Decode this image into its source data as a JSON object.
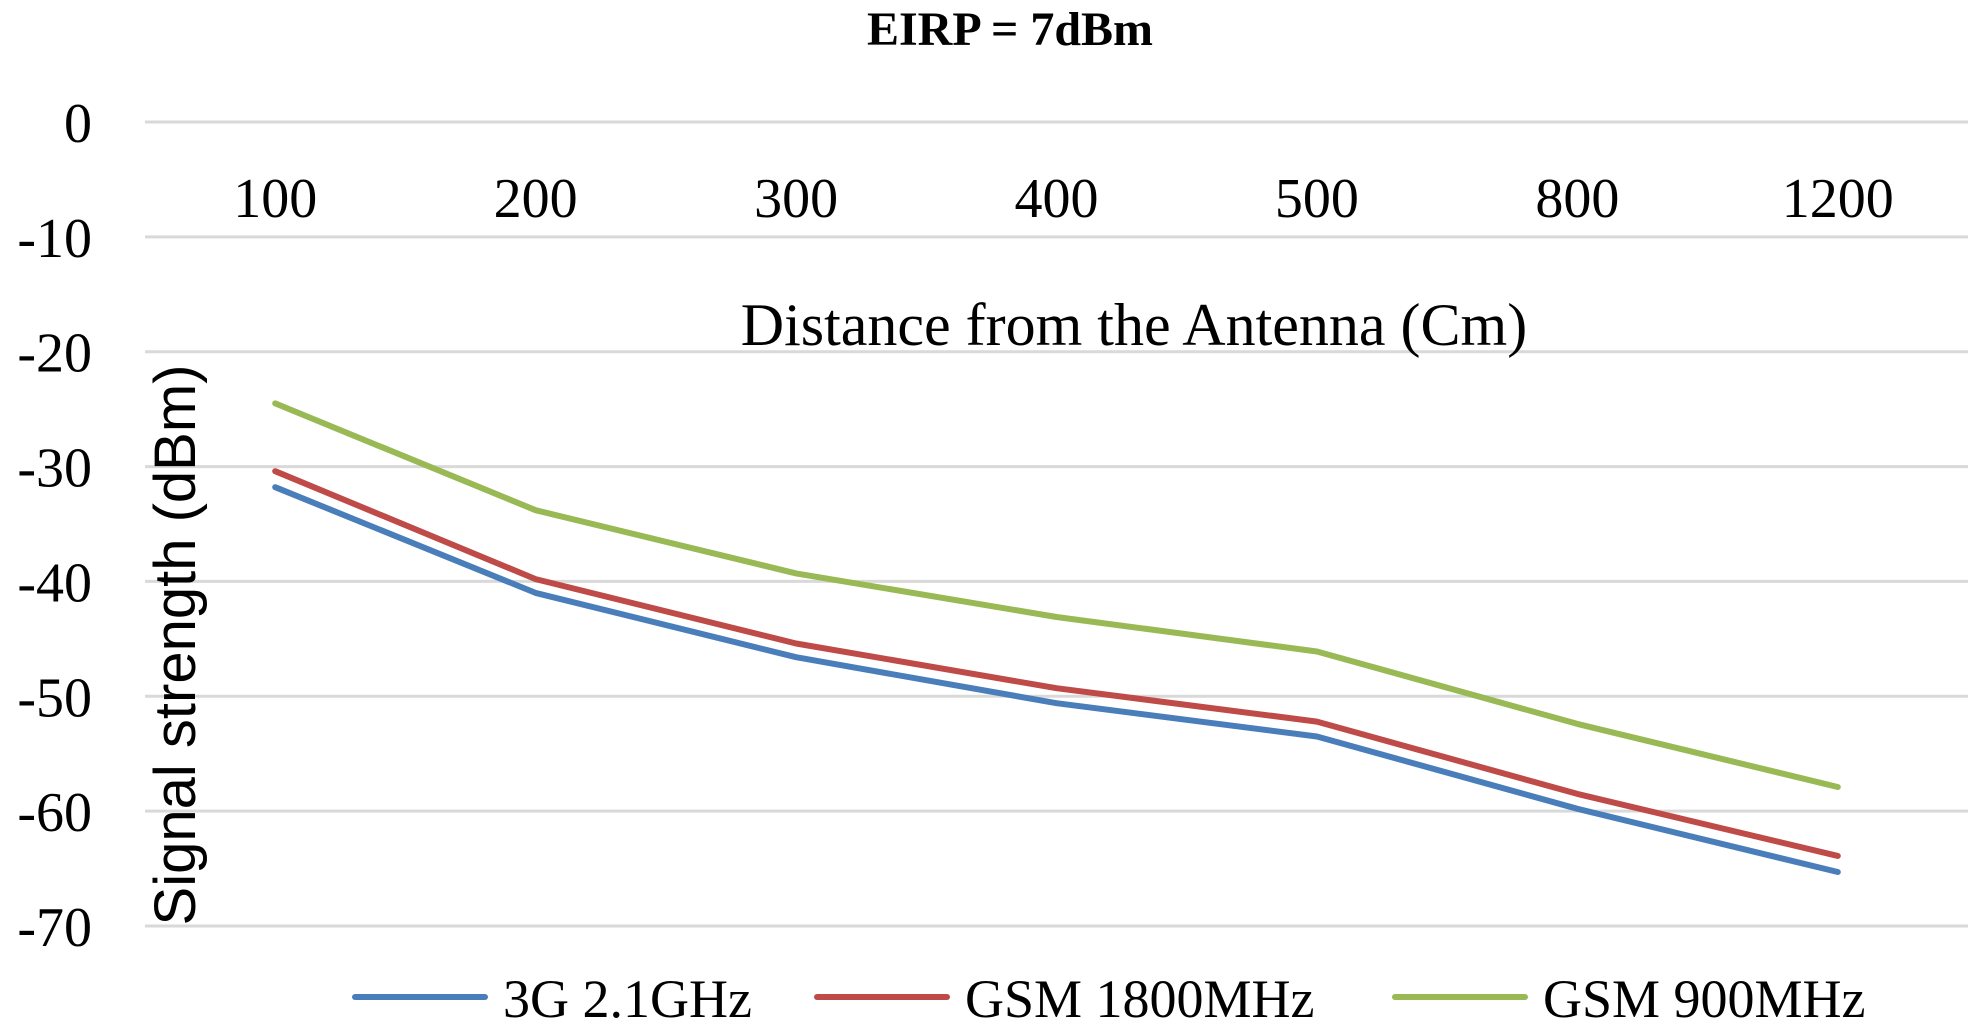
{
  "chart_data": {
    "type": "line",
    "title": "EIRP = 7dBm",
    "xlabel": "Distance from the Antenna (Cm)",
    "ylabel": "Signal strength (dBm)",
    "categories": [
      "100",
      "200",
      "300",
      "400",
      "500",
      "800",
      "1200"
    ],
    "ylim": [
      -70,
      0
    ],
    "yticks": [
      "0",
      "-10",
      "-20",
      "-30",
      "-40",
      "-50",
      "-60",
      "-70"
    ],
    "x_axis_position": "top",
    "grid": true,
    "legend_position": "bottom",
    "series": [
      {
        "name": "3G 2.1GHz",
        "color": "#4a7ebb",
        "values": [
          -31.8,
          -41.0,
          -46.6,
          -50.6,
          -53.5,
          -59.8,
          -65.3
        ]
      },
      {
        "name": "GSM 1800MHz",
        "color": "#be4b48",
        "values": [
          -30.4,
          -39.8,
          -45.4,
          -49.3,
          -52.2,
          -58.5,
          -63.9
        ]
      },
      {
        "name": "GSM 900MHz",
        "color": "#98b954",
        "values": [
          -24.5,
          -33.8,
          -39.3,
          -43.1,
          -46.1,
          -52.4,
          -57.9
        ]
      }
    ]
  }
}
